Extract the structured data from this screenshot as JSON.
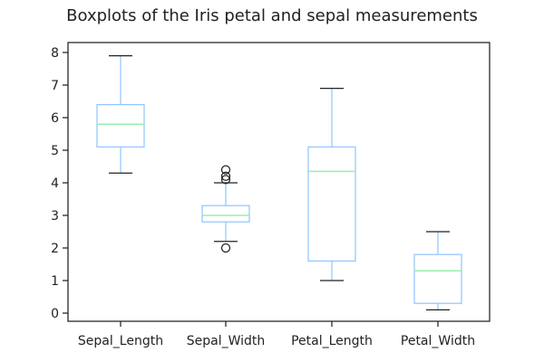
{
  "chart_data": {
    "type": "box",
    "title": "Boxplots of the Iris petal and sepal measurements",
    "xlabel": "",
    "ylabel": "",
    "ylim": [
      -0.25,
      8.25
    ],
    "yticks": [
      "0",
      "1",
      "2",
      "3",
      "4",
      "5",
      "6",
      "7",
      "8"
    ],
    "categories": [
      "Sepal_Length",
      "Sepal_Width",
      "Petal_Length",
      "Petal_Width"
    ],
    "series": [
      {
        "whisker_low": 4.3,
        "q1": 5.1,
        "median": 5.8,
        "q3": 6.4,
        "whisker_high": 7.9,
        "outliers": []
      },
      {
        "whisker_low": 2.2,
        "q1": 2.8,
        "median": 3.0,
        "q3": 3.3,
        "whisker_high": 4.0,
        "outliers": [
          4.4,
          4.2,
          4.1,
          2.0
        ]
      },
      {
        "whisker_low": 1.0,
        "q1": 1.6,
        "median": 4.35,
        "q3": 5.1,
        "whisker_high": 6.9,
        "outliers": []
      },
      {
        "whisker_low": 0.1,
        "q1": 0.3,
        "median": 1.3,
        "q3": 1.8,
        "whisker_high": 2.5,
        "outliers": []
      }
    ],
    "grid": false,
    "legend": "none",
    "colors": {
      "box": "#92c6ff",
      "whisker": "#92c6ff",
      "cap": "#222222",
      "median": "#97f0aa",
      "outlier": "#222222",
      "frame": "#222222"
    }
  }
}
